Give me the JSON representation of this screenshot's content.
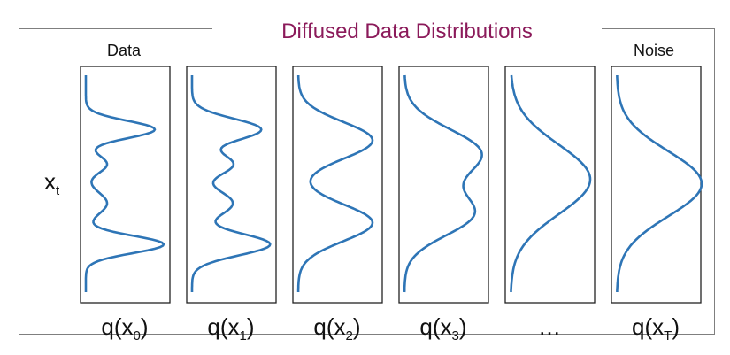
{
  "title": "Diffused Data Distributions",
  "labels": {
    "data": "Data",
    "noise": "Noise"
  },
  "axis_label": {
    "base": "x",
    "sub": "t"
  },
  "panels": [
    {
      "caption_base": "q(x",
      "caption_sub": "0",
      "caption_end": ")"
    },
    {
      "caption_base": "q(x",
      "caption_sub": "1",
      "caption_end": ")"
    },
    {
      "caption_base": "q(x",
      "caption_sub": "2",
      "caption_end": ")"
    },
    {
      "caption_base": "q(x",
      "caption_sub": "3",
      "caption_end": ")"
    },
    {
      "caption_base": "…",
      "caption_sub": "",
      "caption_end": ""
    },
    {
      "caption_base": "q(x",
      "caption_sub": "T",
      "caption_end": ")"
    }
  ],
  "colors": {
    "curve": "#2e75b6",
    "title": "#8b1a5a",
    "border": "#222222"
  }
}
